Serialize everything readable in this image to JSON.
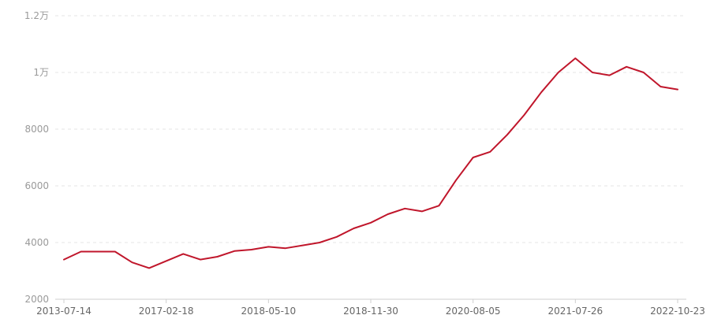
{
  "chart_data": {
    "type": "line",
    "title": "",
    "xlabel": "",
    "ylabel": "",
    "ylim": [
      2000,
      12000
    ],
    "grid": true,
    "color": "#c0162b",
    "y_ticks": [
      {
        "value": 2000,
        "label": "2000"
      },
      {
        "value": 4000,
        "label": "4000"
      },
      {
        "value": 6000,
        "label": "6000"
      },
      {
        "value": 8000,
        "label": "8000"
      },
      {
        "value": 10000,
        "label": "1万"
      },
      {
        "value": 12000,
        "label": "1.2万"
      }
    ],
    "x_tick_labels": [
      "2013-07-14",
      "2017-02-18",
      "2018-05-10",
      "2018-11-30",
      "2020-08-05",
      "2021-07-26",
      "2022-10-23"
    ],
    "x_tick_indices": [
      0,
      6,
      12,
      18,
      24,
      30,
      36
    ],
    "series": [
      {
        "values": [
          3400,
          3680,
          3680,
          3680,
          3300,
          3100,
          3350,
          3600,
          3400,
          3500,
          3700,
          3750,
          3850,
          3800,
          3900,
          4000,
          4200,
          4500,
          4700,
          5000,
          5200,
          5100,
          5300,
          6200,
          7000,
          7200,
          7800,
          8500,
          9300,
          10000,
          10500,
          10000,
          9900,
          10200,
          10000,
          9500,
          9400
        ]
      }
    ]
  }
}
